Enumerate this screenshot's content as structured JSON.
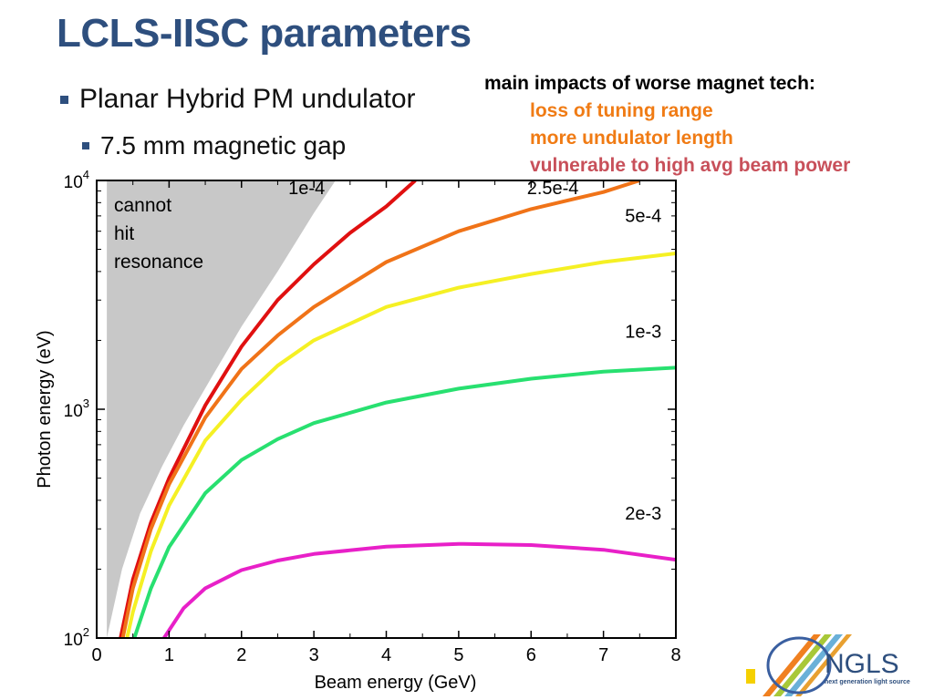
{
  "slide": {
    "title": "LCLS-IISC parameters",
    "bullets": [
      "Planar Hybrid PM undulator",
      "7.5 mm magnetic gap"
    ]
  },
  "impacts": {
    "heading": "main impacts of worse magnet tech:",
    "items": [
      {
        "text": "loss of tuning range",
        "color": "#f07b14"
      },
      {
        "text": "more undulator length",
        "color": "#f07b14"
      },
      {
        "text": "vulnerable to high avg beam power",
        "color": "#c8505a"
      }
    ]
  },
  "logo": {
    "name": "NGLS",
    "tagline": "next generation light source"
  },
  "chart_data": {
    "type": "line",
    "xlabel": "Beam energy (GeV)",
    "ylabel": "Photon energy (eV)",
    "xlim": [
      0,
      8
    ],
    "ylim": [
      100,
      10000
    ],
    "yscale": "log",
    "x_ticks": [
      0,
      1,
      2,
      3,
      4,
      5,
      6,
      7,
      8
    ],
    "y_tick_labels": [
      {
        "value": 100,
        "base": "10",
        "exp": "2"
      },
      {
        "value": 1000,
        "base": "10",
        "exp": "3"
      },
      {
        "value": 10000,
        "base": "10",
        "exp": "4"
      }
    ],
    "grid": false,
    "shaded_region": {
      "label": "cannot\nhit\nresonance",
      "color": "#c8c8c8",
      "boundary": [
        {
          "x": 0.14,
          "y": 100
        },
        {
          "x": 0.35,
          "y": 200
        },
        {
          "x": 0.6,
          "y": 350
        },
        {
          "x": 0.9,
          "y": 560
        },
        {
          "x": 1.2,
          "y": 850
        },
        {
          "x": 1.6,
          "y": 1400
        },
        {
          "x": 2.0,
          "y": 2300
        },
        {
          "x": 2.5,
          "y": 4000
        },
        {
          "x": 3.0,
          "y": 7200
        },
        {
          "x": 3.3,
          "y": 10000
        }
      ]
    },
    "series": [
      {
        "name": "1e-4",
        "color": "#e01010",
        "label_pos": {
          "x": 2.9,
          "y": 8700
        },
        "points": [
          {
            "x": 0.33,
            "y": 100
          },
          {
            "x": 0.5,
            "y": 180
          },
          {
            "x": 0.75,
            "y": 320
          },
          {
            "x": 1.0,
            "y": 500
          },
          {
            "x": 1.5,
            "y": 1040
          },
          {
            "x": 2.0,
            "y": 1880
          },
          {
            "x": 2.5,
            "y": 3000
          },
          {
            "x": 3.0,
            "y": 4300
          },
          {
            "x": 3.5,
            "y": 5900
          },
          {
            "x": 4.0,
            "y": 7700
          },
          {
            "x": 4.4,
            "y": 10000
          }
        ]
      },
      {
        "name": "2.5e-4",
        "color": "#f07318",
        "label_pos": {
          "x": 6.3,
          "y": 8700
        },
        "points": [
          {
            "x": 0.36,
            "y": 100
          },
          {
            "x": 0.5,
            "y": 165
          },
          {
            "x": 0.75,
            "y": 300
          },
          {
            "x": 1.0,
            "y": 470
          },
          {
            "x": 1.5,
            "y": 920
          },
          {
            "x": 2.0,
            "y": 1500
          },
          {
            "x": 2.5,
            "y": 2100
          },
          {
            "x": 3.0,
            "y": 2800
          },
          {
            "x": 4.0,
            "y": 4400
          },
          {
            "x": 5.0,
            "y": 6000
          },
          {
            "x": 6.0,
            "y": 7500
          },
          {
            "x": 7.0,
            "y": 8900
          },
          {
            "x": 7.5,
            "y": 10000
          }
        ]
      },
      {
        "name": "5e-4",
        "color": "#f5f024",
        "label_pos": {
          "x": 7.55,
          "y": 6600
        },
        "points": [
          {
            "x": 0.42,
            "y": 100
          },
          {
            "x": 0.5,
            "y": 130
          },
          {
            "x": 0.75,
            "y": 240
          },
          {
            "x": 1.0,
            "y": 380
          },
          {
            "x": 1.5,
            "y": 730
          },
          {
            "x": 2.0,
            "y": 1100
          },
          {
            "x": 2.5,
            "y": 1550
          },
          {
            "x": 3.0,
            "y": 2000
          },
          {
            "x": 4.0,
            "y": 2800
          },
          {
            "x": 5.0,
            "y": 3400
          },
          {
            "x": 6.0,
            "y": 3900
          },
          {
            "x": 7.0,
            "y": 4400
          },
          {
            "x": 8.0,
            "y": 4800
          }
        ]
      },
      {
        "name": "1e-3",
        "color": "#28e070",
        "label_pos": {
          "x": 7.55,
          "y": 2050
        },
        "points": [
          {
            "x": 0.52,
            "y": 100
          },
          {
            "x": 0.75,
            "y": 165
          },
          {
            "x": 1.0,
            "y": 250
          },
          {
            "x": 1.5,
            "y": 430
          },
          {
            "x": 2.0,
            "y": 600
          },
          {
            "x": 2.5,
            "y": 740
          },
          {
            "x": 3.0,
            "y": 870
          },
          {
            "x": 4.0,
            "y": 1070
          },
          {
            "x": 5.0,
            "y": 1230
          },
          {
            "x": 6.0,
            "y": 1360
          },
          {
            "x": 7.0,
            "y": 1460
          },
          {
            "x": 8.0,
            "y": 1520
          }
        ]
      },
      {
        "name": "2e-3",
        "color": "#e820c8",
        "label_pos": {
          "x": 7.55,
          "y": 330
        },
        "points": [
          {
            "x": 0.93,
            "y": 100
          },
          {
            "x": 1.2,
            "y": 135
          },
          {
            "x": 1.5,
            "y": 165
          },
          {
            "x": 2.0,
            "y": 198
          },
          {
            "x": 2.5,
            "y": 218
          },
          {
            "x": 3.0,
            "y": 233
          },
          {
            "x": 4.0,
            "y": 251
          },
          {
            "x": 5.0,
            "y": 258
          },
          {
            "x": 6.0,
            "y": 255
          },
          {
            "x": 7.0,
            "y": 243
          },
          {
            "x": 8.0,
            "y": 220
          }
        ]
      }
    ]
  }
}
